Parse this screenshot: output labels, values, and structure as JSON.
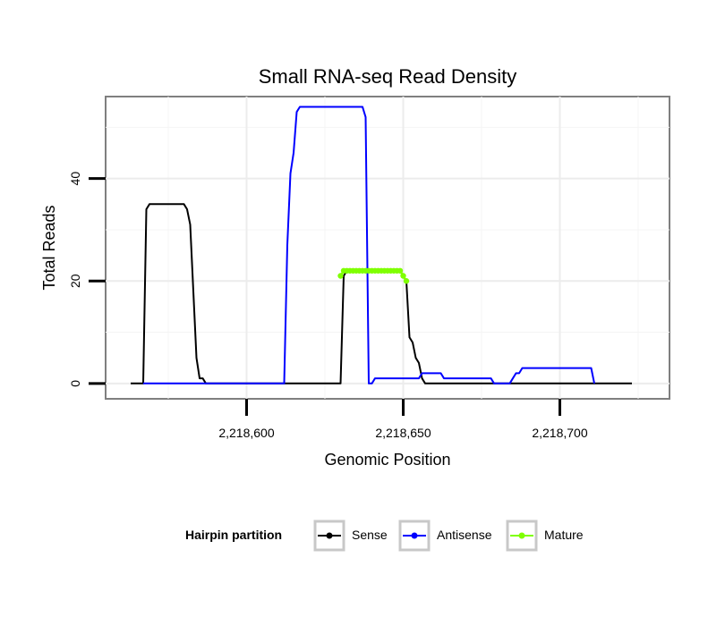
{
  "chart_data": {
    "type": "line",
    "title": "Small RNA-seq Read Density",
    "xlabel": "Genomic Position",
    "ylabel": "Total Reads",
    "xlim": [
      2218555,
      2218735
    ],
    "ylim": [
      -3,
      56
    ],
    "x_ticks": [
      {
        "value": 2218600,
        "label": "2,218,600"
      },
      {
        "value": 2218650,
        "label": "2,218,650"
      },
      {
        "value": 2218700,
        "label": "2,218,700"
      }
    ],
    "y_ticks": [
      {
        "value": 0,
        "label": "0"
      },
      {
        "value": 20,
        "label": "20"
      },
      {
        "value": 40,
        "label": "40"
      }
    ],
    "grid": true,
    "legend": {
      "title": "Hairpin partition",
      "placement": "bottom"
    },
    "series": [
      {
        "name": "Sense",
        "color": "#000000",
        "points": [
          [
            2218563,
            0
          ],
          [
            2218567,
            0
          ],
          [
            2218568,
            34
          ],
          [
            2218569,
            35
          ],
          [
            2218580,
            35
          ],
          [
            2218581,
            34
          ],
          [
            2218582,
            31
          ],
          [
            2218583,
            18
          ],
          [
            2218584,
            5
          ],
          [
            2218585,
            1
          ],
          [
            2218586,
            1
          ],
          [
            2218587,
            0
          ],
          [
            2218630,
            0
          ],
          [
            2218631,
            21
          ],
          [
            2218632,
            22
          ],
          [
            2218649,
            22
          ],
          [
            2218650,
            21
          ],
          [
            2218651,
            20
          ],
          [
            2218652,
            9
          ],
          [
            2218653,
            8
          ],
          [
            2218654,
            5
          ],
          [
            2218655,
            4
          ],
          [
            2218656,
            1
          ],
          [
            2218657,
            0
          ],
          [
            2218723,
            0
          ]
        ]
      },
      {
        "name": "Antisense",
        "color": "#0000ff",
        "points": [
          [
            2218567,
            0
          ],
          [
            2218596,
            0
          ],
          [
            2218612,
            0
          ],
          [
            2218613,
            27
          ],
          [
            2218614,
            41
          ],
          [
            2218615,
            45
          ],
          [
            2218616,
            53
          ],
          [
            2218617,
            54
          ],
          [
            2218637,
            54
          ],
          [
            2218638,
            52
          ],
          [
            2218639,
            0
          ],
          [
            2218640,
            0
          ],
          [
            2218641,
            1
          ],
          [
            2218655,
            1
          ],
          [
            2218656,
            2
          ],
          [
            2218662,
            2
          ],
          [
            2218663,
            1
          ],
          [
            2218678,
            1
          ],
          [
            2218679,
            0
          ],
          [
            2218684,
            0
          ],
          [
            2218685,
            1
          ],
          [
            2218686,
            2
          ],
          [
            2218687,
            2
          ],
          [
            2218688,
            3
          ],
          [
            2218710,
            3
          ],
          [
            2218711,
            0
          ]
        ]
      },
      {
        "name": "Mature",
        "color": "#7fff00",
        "marker": "dot",
        "points": [
          [
            2218630,
            21
          ],
          [
            2218631,
            22
          ],
          [
            2218632,
            22
          ],
          [
            2218633,
            22
          ],
          [
            2218634,
            22
          ],
          [
            2218635,
            22
          ],
          [
            2218636,
            22
          ],
          [
            2218637,
            22
          ],
          [
            2218638,
            22
          ],
          [
            2218639,
            22
          ],
          [
            2218640,
            22
          ],
          [
            2218641,
            22
          ],
          [
            2218642,
            22
          ],
          [
            2218643,
            22
          ],
          [
            2218644,
            22
          ],
          [
            2218645,
            22
          ],
          [
            2218646,
            22
          ],
          [
            2218647,
            22
          ],
          [
            2218648,
            22
          ],
          [
            2218649,
            22
          ],
          [
            2218650,
            21
          ],
          [
            2218651,
            20
          ]
        ]
      }
    ]
  }
}
